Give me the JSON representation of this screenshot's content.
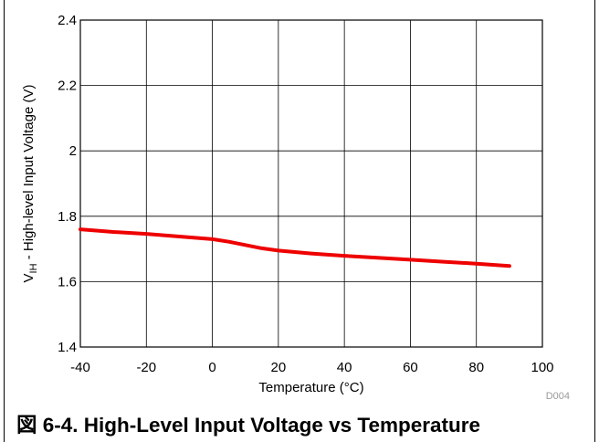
{
  "caption": "図 6-4. High-Level Input Voltage vs Temperature",
  "chart_data": {
    "type": "line",
    "title": "",
    "xlabel": "Temperature (°C)",
    "ylabel_main": "V",
    "ylabel_sub": "IH",
    "ylabel_rest": " - High-level Input Voltage (V)",
    "xlim": [
      -40,
      100
    ],
    "ylim": [
      1.4,
      2.4
    ],
    "x_ticks": [
      -40,
      -20,
      0,
      20,
      40,
      60,
      80,
      100
    ],
    "y_ticks": [
      1.4,
      1.6,
      1.8,
      2,
      2.2,
      2.4
    ],
    "x_tick_labels": [
      "-40",
      "-20",
      "0",
      "20",
      "40",
      "60",
      "80",
      "100"
    ],
    "y_tick_labels": [
      "1.4",
      "1.6",
      "1.8",
      "2",
      "2.2",
      "2.4"
    ],
    "grid": true,
    "figure_code": "D004",
    "series": [
      {
        "color": "#ee0000",
        "x": [
          -40,
          -30,
          -20,
          -10,
          0,
          5,
          10,
          15,
          20,
          30,
          40,
          50,
          60,
          70,
          80,
          90
        ],
        "y": [
          1.76,
          1.752,
          1.746,
          1.738,
          1.73,
          1.722,
          1.712,
          1.702,
          1.695,
          1.686,
          1.679,
          1.673,
          1.667,
          1.661,
          1.655,
          1.648
        ]
      }
    ]
  }
}
